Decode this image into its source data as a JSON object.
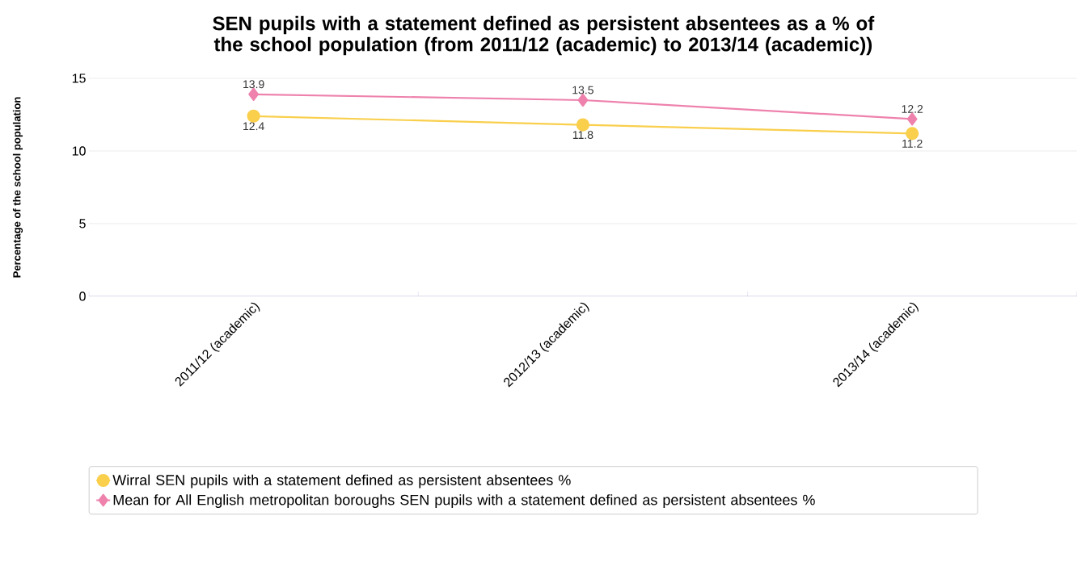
{
  "chart_data": {
    "type": "line",
    "title": "SEN pupils with a statement defined as persistent absentees as a % of the school population (from 2011/12 (academic) to 2013/14 (academic))",
    "ylabel": "Percentage of the school population",
    "categories": [
      "2011/12 (academic)",
      "2012/13 (academic)",
      "2013/14 (academic)"
    ],
    "series": [
      {
        "name": "Wirral SEN pupils with a statement defined as persistent absentees %",
        "color": "#f9cf4c",
        "marker": "circle",
        "values": [
          12.4,
          11.8,
          11.2
        ]
      },
      {
        "name": "Mean for All English metropolitan boroughs SEN pupils with a statement defined as persistent absentees %",
        "color": "#ee82ad",
        "marker": "diamond",
        "values": [
          13.9,
          13.5,
          12.2
        ]
      }
    ],
    "ylim": [
      0,
      15
    ],
    "yticks": [
      0,
      5,
      10,
      15
    ],
    "grid": "y",
    "legend": "bottom",
    "data_labels": true,
    "line_style": "solid"
  }
}
